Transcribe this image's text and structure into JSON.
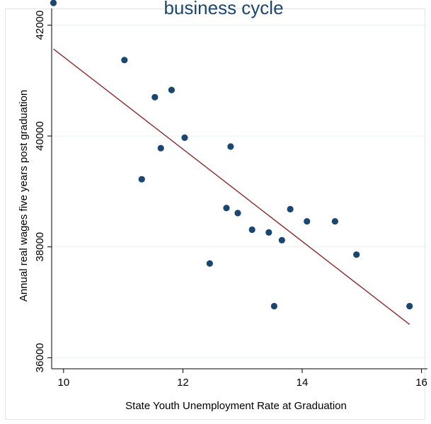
{
  "chart_data": {
    "type": "scatter",
    "title": "business cycle",
    "xlabel": "State Youth Unemployment Rate at Graduation",
    "ylabel": "Annual real wages five years post graduation",
    "xlim": [
      9.8,
      16.1
    ],
    "ylim": [
      35800,
      42300
    ],
    "x_ticks": [
      10,
      12,
      14,
      16
    ],
    "y_ticks": [
      36000,
      38000,
      40000,
      42000
    ],
    "grid": true,
    "legend": "none",
    "marker_color": "#1a476f",
    "fit_color": "#8b2a2a",
    "series": [
      {
        "type": "scatter",
        "points": [
          {
            "x": 9.83,
            "y": 42400
          },
          {
            "x": 11.02,
            "y": 41370
          },
          {
            "x": 11.31,
            "y": 39220
          },
          {
            "x": 11.53,
            "y": 40700
          },
          {
            "x": 11.63,
            "y": 39780
          },
          {
            "x": 11.81,
            "y": 40830
          },
          {
            "x": 12.03,
            "y": 39970
          },
          {
            "x": 12.45,
            "y": 37700
          },
          {
            "x": 12.73,
            "y": 38700
          },
          {
            "x": 12.8,
            "y": 39810
          },
          {
            "x": 12.92,
            "y": 38610
          },
          {
            "x": 13.16,
            "y": 38310
          },
          {
            "x": 13.44,
            "y": 38260
          },
          {
            "x": 13.53,
            "y": 36930
          },
          {
            "x": 13.66,
            "y": 38120
          },
          {
            "x": 13.8,
            "y": 38680
          },
          {
            "x": 14.08,
            "y": 38460
          },
          {
            "x": 14.55,
            "y": 38460
          },
          {
            "x": 14.91,
            "y": 37860
          },
          {
            "x": 15.8,
            "y": 36930
          }
        ]
      },
      {
        "type": "line",
        "points": [
          {
            "x": 9.83,
            "y": 41570
          },
          {
            "x": 15.8,
            "y": 36600
          }
        ]
      }
    ]
  }
}
